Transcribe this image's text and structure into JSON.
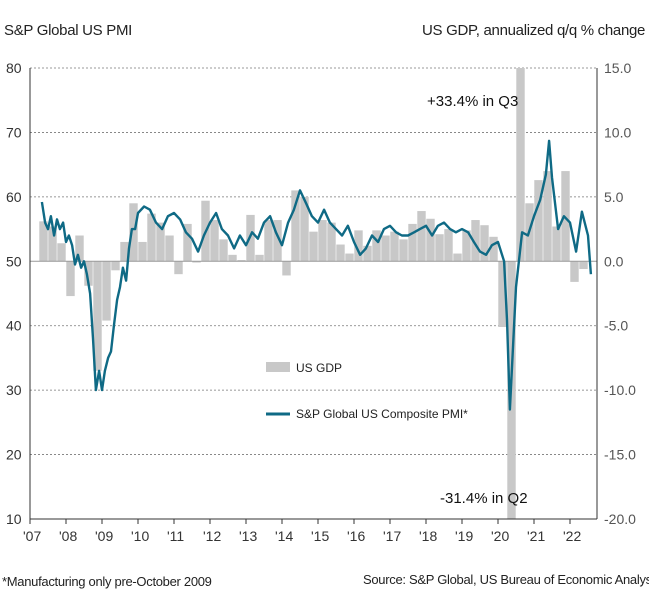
{
  "titles": {
    "left": "S&P Global US PMI",
    "right": "US GDP, annualized q/q % change"
  },
  "footnote": "*Manufacturing only pre-October 2009",
  "source": "Source: S&P Global,  US Bureau of Economic Analysis",
  "colors": {
    "pmi_line": "#0f6a85",
    "gdp_bars": "#c8c8c8",
    "grid": "#777777",
    "zero_line": "#999999"
  },
  "chart_data": {
    "type": "bar+line",
    "x_ticks": [
      "'07",
      "'08",
      "'09",
      "'10",
      "'11",
      "'12",
      "'13",
      "'14",
      "'15",
      "'16",
      "'17",
      "'18",
      "'19",
      "'20",
      "'21",
      "'22"
    ],
    "x_tick_years": [
      2007,
      2008,
      2009,
      2010,
      2011,
      2012,
      2013,
      2014,
      2015,
      2016,
      2017,
      2018,
      2019,
      2020,
      2021,
      2022
    ],
    "x_range": [
      2007.0,
      2022.75
    ],
    "left_axis": {
      "range": [
        10,
        80
      ],
      "ticks": [
        10,
        20,
        30,
        40,
        50,
        60,
        70,
        80
      ]
    },
    "right_axis": {
      "range": [
        -20,
        15
      ],
      "ticks": [
        "-20.0",
        "-15.0",
        "-10.0",
        "-5.0",
        "0.0",
        "5.0",
        "10.0",
        "15.0"
      ]
    },
    "grid": "horizontal dashed",
    "legend_entries": [
      "US GDP",
      "S&P Global US Composite PMI*"
    ],
    "annotations": [
      "+33.4% in Q3",
      "-31.4% in Q2"
    ],
    "gdp_bars": {
      "name": "US GDP",
      "axis": "right",
      "quarters": [
        "2007Q2",
        "2007Q3",
        "2007Q4",
        "2008Q1",
        "2008Q2",
        "2008Q3",
        "2008Q4",
        "2009Q1",
        "2009Q2",
        "2009Q3",
        "2009Q4",
        "2010Q1",
        "2010Q2",
        "2010Q3",
        "2010Q4",
        "2011Q1",
        "2011Q2",
        "2011Q3",
        "2011Q4",
        "2012Q1",
        "2012Q2",
        "2012Q3",
        "2012Q4",
        "2013Q1",
        "2013Q2",
        "2013Q3",
        "2013Q4",
        "2014Q1",
        "2014Q2",
        "2014Q3",
        "2014Q4",
        "2015Q1",
        "2015Q2",
        "2015Q3",
        "2015Q4",
        "2016Q1",
        "2016Q2",
        "2016Q3",
        "2016Q4",
        "2017Q1",
        "2017Q2",
        "2017Q3",
        "2017Q4",
        "2018Q1",
        "2018Q2",
        "2018Q3",
        "2018Q4",
        "2019Q1",
        "2019Q2",
        "2019Q3",
        "2019Q4",
        "2020Q1",
        "2020Q2",
        "2020Q3",
        "2020Q4",
        "2021Q1",
        "2021Q2",
        "2021Q3",
        "2021Q4",
        "2022Q1",
        "2022Q2"
      ],
      "values": [
        3.1,
        2.7,
        1.4,
        -2.7,
        2.0,
        -1.9,
        -8.5,
        -4.6,
        -0.7,
        1.5,
        4.5,
        1.5,
        3.7,
        3.0,
        2.0,
        -1.0,
        2.9,
        -0.1,
        4.7,
        3.2,
        1.7,
        0.5,
        0.1,
        3.6,
        0.5,
        3.2,
        3.2,
        -1.1,
        5.5,
        5.0,
        2.3,
        3.2,
        3.0,
        1.3,
        0.6,
        2.4,
        1.2,
        2.4,
        2.0,
        2.3,
        1.7,
        2.9,
        3.9,
        3.3,
        2.1,
        2.5,
        0.6,
        2.4,
        3.2,
        2.8,
        1.9,
        -5.1,
        -31.4,
        33.4,
        4.5,
        6.3,
        7.0,
        2.7,
        7.0,
        -1.6,
        -0.6
      ]
    },
    "pmi_line": {
      "name": "S&P Global US Composite PMI*",
      "axis": "left",
      "x": [
        2007.33,
        2007.42,
        2007.5,
        2007.58,
        2007.67,
        2007.75,
        2007.83,
        2007.92,
        2008.0,
        2008.08,
        2008.17,
        2008.25,
        2008.33,
        2008.42,
        2008.5,
        2008.58,
        2008.67,
        2008.75,
        2008.83,
        2008.92,
        2009.0,
        2009.08,
        2009.17,
        2009.25,
        2009.33,
        2009.42,
        2009.5,
        2009.58,
        2009.67,
        2009.75,
        2009.83,
        2009.92,
        2010.0,
        2010.17,
        2010.33,
        2010.5,
        2010.67,
        2010.83,
        2011.0,
        2011.17,
        2011.33,
        2011.5,
        2011.67,
        2011.83,
        2012.0,
        2012.17,
        2012.33,
        2012.5,
        2012.67,
        2012.83,
        2013.0,
        2013.17,
        2013.33,
        2013.5,
        2013.67,
        2013.83,
        2014.0,
        2014.17,
        2014.33,
        2014.5,
        2014.67,
        2014.83,
        2015.0,
        2015.17,
        2015.33,
        2015.5,
        2015.67,
        2015.83,
        2016.0,
        2016.17,
        2016.33,
        2016.5,
        2016.67,
        2016.83,
        2017.0,
        2017.17,
        2017.33,
        2017.5,
        2017.67,
        2017.83,
        2018.0,
        2018.17,
        2018.33,
        2018.5,
        2018.67,
        2018.83,
        2019.0,
        2019.17,
        2019.33,
        2019.5,
        2019.67,
        2019.83,
        2020.0,
        2020.17,
        2020.25,
        2020.33,
        2020.42,
        2020.5,
        2020.58,
        2020.67,
        2020.83,
        2021.0,
        2021.17,
        2021.33,
        2021.42,
        2021.5,
        2021.67,
        2021.83,
        2022.0,
        2022.17,
        2022.33,
        2022.5,
        2022.58
      ],
      "values": [
        59.2,
        56.0,
        55.0,
        57.0,
        54.0,
        56.5,
        55.0,
        56.0,
        53.0,
        54.0,
        52.5,
        49.5,
        51.0,
        49.0,
        50.0,
        48.0,
        45.0,
        38.0,
        30.0,
        33.0,
        30.0,
        33.0,
        35.0,
        36.0,
        40.0,
        44.0,
        46.0,
        49.0,
        47.0,
        52.0,
        55.0,
        55.0,
        57.5,
        58.5,
        58.0,
        56.0,
        55.0,
        57.0,
        57.5,
        56.5,
        54.5,
        53.5,
        51.5,
        54.0,
        56.0,
        57.5,
        55.0,
        54.0,
        52.0,
        54.0,
        52.5,
        54.5,
        53.5,
        56.0,
        57.0,
        54.5,
        52.5,
        56.0,
        58.0,
        61.0,
        59.0,
        57.0,
        56.0,
        58.0,
        56.0,
        55.0,
        54.0,
        55.5,
        53.0,
        51.0,
        52.0,
        54.0,
        53.0,
        55.0,
        55.5,
        54.5,
        54.0,
        54.0,
        54.5,
        55.0,
        55.5,
        54.0,
        55.5,
        56.0,
        55.0,
        54.5,
        55.0,
        54.5,
        53.0,
        51.5,
        51.0,
        52.5,
        53.0,
        50.0,
        40.9,
        27.0,
        37.0,
        46.0,
        50.0,
        54.5,
        54.0,
        57.0,
        59.5,
        63.5,
        68.7,
        63.0,
        55.0,
        57.0,
        56.0,
        51.5,
        57.7,
        54.0,
        48.0
      ]
    }
  }
}
